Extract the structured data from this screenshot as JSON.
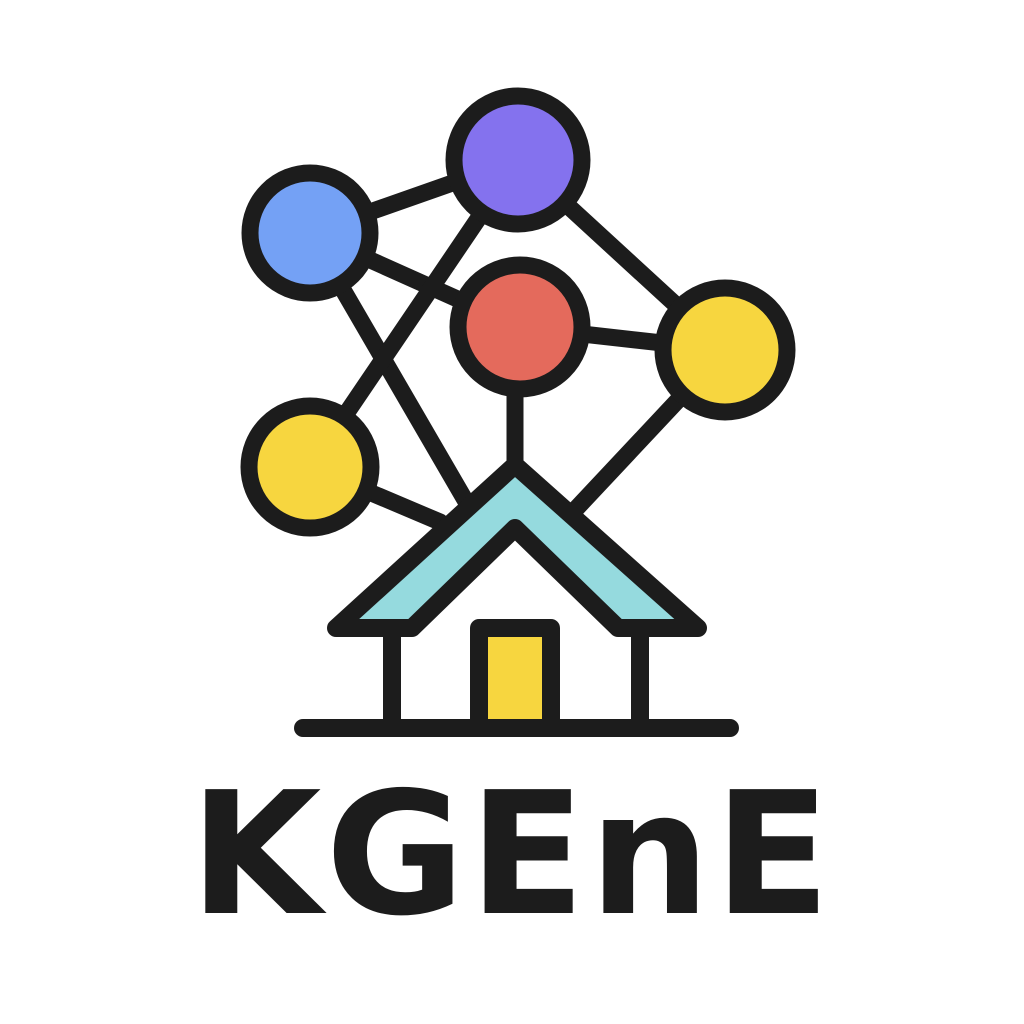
{
  "brand": {
    "name": "KGEnE"
  },
  "colors": {
    "outline": "#1c1c1c",
    "node_blue": "#74a1f5",
    "node_purple": "#8472ee",
    "node_red": "#e46a5c",
    "node_yellow": "#f7d63f",
    "roof": "#95dade",
    "door": "#f7d63f",
    "background": "#ffffff"
  },
  "icons": {
    "graph": "knowledge-graph-icon",
    "house": "house-icon"
  }
}
